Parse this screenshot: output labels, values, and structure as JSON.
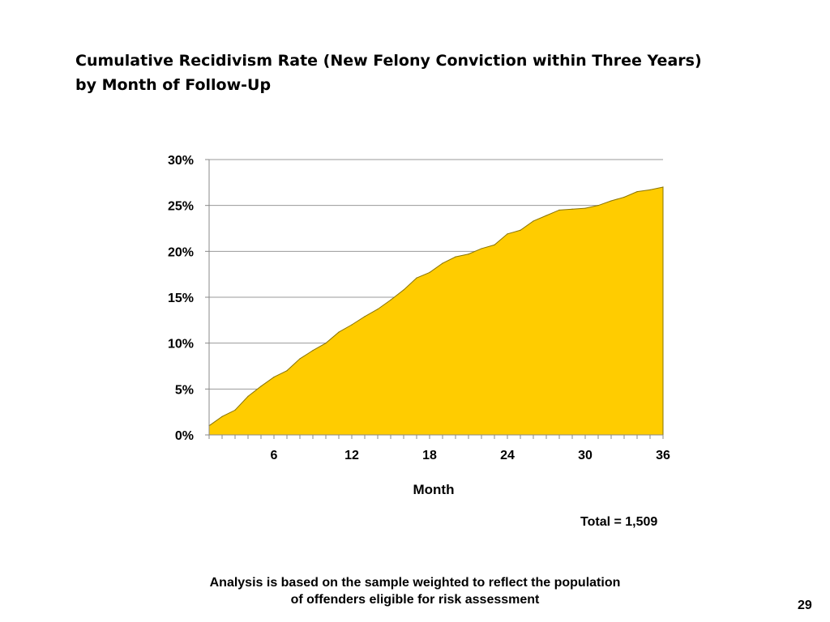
{
  "slide": {
    "title_line1": "Cumulative Recidivism Rate (New Felony Conviction within Three Years)",
    "title_line2": "by Month of Follow-Up",
    "total_label": "Total = 1,509",
    "footnote_line1": "Analysis is based on the sample weighted to reflect the population",
    "footnote_line2": "of offenders eligible for risk assessment",
    "page_number": "29"
  },
  "chart_data": {
    "type": "area",
    "xlabel": "Month",
    "ylabel": "",
    "x": [
      1,
      2,
      3,
      4,
      5,
      6,
      7,
      8,
      9,
      10,
      11,
      12,
      13,
      14,
      15,
      16,
      17,
      18,
      19,
      20,
      21,
      22,
      23,
      24,
      25,
      26,
      27,
      28,
      29,
      30,
      31,
      32,
      33,
      34,
      35,
      36
    ],
    "values": [
      1.0,
      2.0,
      2.7,
      4.2,
      5.3,
      6.3,
      7.0,
      8.3,
      9.2,
      10.0,
      11.2,
      12.0,
      12.9,
      13.7,
      14.7,
      15.8,
      17.1,
      17.7,
      18.7,
      19.4,
      19.7,
      20.3,
      20.7,
      21.9,
      22.3,
      23.3,
      23.9,
      24.5,
      24.6,
      24.7,
      25.0,
      25.5,
      25.9,
      26.5,
      26.7,
      27.0
    ],
    "x_ticks": [
      6,
      12,
      18,
      24,
      30,
      36
    ],
    "x_tick_labels": [
      "6",
      "12",
      "18",
      "24",
      "30",
      "36"
    ],
    "y_ticks": [
      0,
      5,
      10,
      15,
      20,
      25,
      30
    ],
    "y_tick_labels": [
      "0%",
      "5%",
      "10%",
      "15%",
      "20%",
      "25%",
      "30%"
    ],
    "xlim": [
      1,
      36
    ],
    "ylim": [
      0,
      30
    ],
    "grid": true,
    "fill_color": "#ffcc00",
    "line_color": "#8a7400",
    "grid_color": "#999999"
  }
}
